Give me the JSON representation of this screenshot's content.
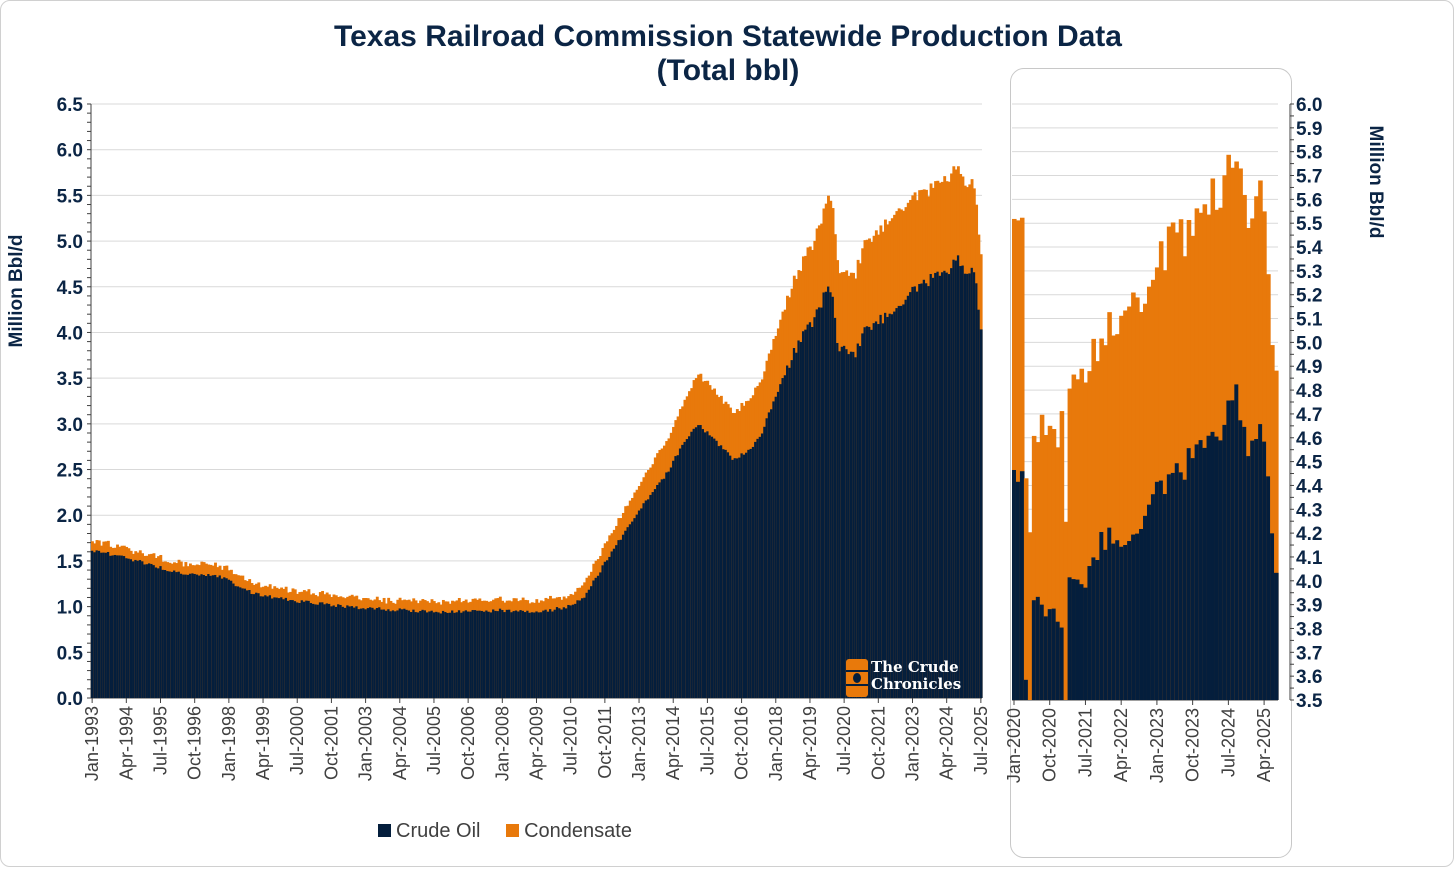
{
  "title": "Texas Railroad Commission Statewide Production Data",
  "subtitle": "(Total bbl)",
  "watermark": {
    "line1": "The Crude",
    "line2": "Chronicles"
  },
  "colors": {
    "crude": "#041e3c",
    "condensate": "#e8790b",
    "grid": "#d9d9d9",
    "text": "#0b2545"
  },
  "legend": [
    {
      "label": "Crude Oil",
      "color": "#041e3c"
    },
    {
      "label": "Condensate",
      "color": "#e8790b"
    }
  ],
  "chart_data": [
    {
      "type": "area",
      "stacked": true,
      "title": "Texas Railroad Commission Statewide Production Data (Total bbl)",
      "ylabel": "Million Bbl/d",
      "ylim": [
        0,
        6.5
      ],
      "yticks": [
        "0.0",
        "0.5",
        "1.0",
        "1.5",
        "2.0",
        "2.5",
        "3.0",
        "3.5",
        "4.0",
        "4.5",
        "5.0",
        "5.5",
        "6.0",
        "6.5"
      ],
      "x_start": "1993-01",
      "x_end": "2025-07",
      "x_tick_labels": [
        "Jan-1993",
        "Apr-1994",
        "Jul-1995",
        "Oct-1996",
        "Jan-1998",
        "Apr-1999",
        "Jul-2000",
        "Oct-2001",
        "Jan-2003",
        "Apr-2004",
        "Jul-2005",
        "Oct-2006",
        "Jan-2008",
        "Apr-2009",
        "Jul-2010",
        "Oct-2011",
        "Jan-2013",
        "Apr-2014",
        "Jul-2015",
        "Oct-2016",
        "Jan-2018",
        "Apr-2019",
        "Jul-2020",
        "Oct-2021",
        "Jan-2023",
        "Apr-2024",
        "Jul-2025"
      ],
      "series": [
        {
          "name": "Crude Oil",
          "anchors": [
            [
              "1993-01",
              1.62
            ],
            [
              "1994-06",
              1.52
            ],
            [
              "1996-01",
              1.38
            ],
            [
              "1997-10",
              1.32
            ],
            [
              "1998-12",
              1.14
            ],
            [
              "2000-06",
              1.06
            ],
            [
              "2003-01",
              0.98
            ],
            [
              "2006-01",
              0.94
            ],
            [
              "2008-01",
              0.96
            ],
            [
              "2009-06",
              0.94
            ],
            [
              "2010-06",
              1.0
            ],
            [
              "2011-01",
              1.1
            ],
            [
              "2012-01",
              1.6
            ],
            [
              "2013-01",
              2.05
            ],
            [
              "2014-01",
              2.45
            ],
            [
              "2014-10",
              2.85
            ],
            [
              "2015-03",
              3.0
            ],
            [
              "2015-09",
              2.85
            ],
            [
              "2016-06",
              2.62
            ],
            [
              "2016-12",
              2.68
            ],
            [
              "2017-06",
              2.85
            ],
            [
              "2018-01",
              3.3
            ],
            [
              "2018-12",
              3.95
            ],
            [
              "2019-06",
              4.15
            ],
            [
              "2019-12",
              4.5
            ],
            [
              "2020-02",
              4.45
            ],
            [
              "2020-04",
              3.85
            ],
            [
              "2020-12",
              3.75
            ],
            [
              "2021-04",
              4.05
            ],
            [
              "2021-12",
              4.15
            ],
            [
              "2022-06",
              4.3
            ],
            [
              "2023-01",
              4.45
            ],
            [
              "2023-10",
              4.6
            ],
            [
              "2024-06",
              4.7
            ],
            [
              "2024-09",
              4.82
            ],
            [
              "2025-01",
              4.62
            ],
            [
              "2025-03",
              4.65
            ],
            [
              "2025-05",
              4.55
            ],
            [
              "2025-07",
              4.05
            ]
          ]
        },
        {
          "name": "Condensate",
          "anchors": [
            [
              "1993-01",
              0.1
            ],
            [
              "1998-01",
              0.12
            ],
            [
              "2003-01",
              0.1
            ],
            [
              "2008-01",
              0.12
            ],
            [
              "2010-06",
              0.12
            ],
            [
              "2011-06",
              0.18
            ],
            [
              "2013-01",
              0.28
            ],
            [
              "2014-06",
              0.4
            ],
            [
              "2015-03",
              0.55
            ],
            [
              "2016-06",
              0.5
            ],
            [
              "2017-06",
              0.6
            ],
            [
              "2018-06",
              0.75
            ],
            [
              "2019-06",
              0.85
            ],
            [
              "2020-01",
              1.0
            ],
            [
              "2020-06",
              0.82
            ],
            [
              "2021-06",
              0.95
            ],
            [
              "2022-06",
              1.05
            ],
            [
              "2023-06",
              1.0
            ],
            [
              "2024-06",
              1.02
            ],
            [
              "2025-03",
              0.95
            ],
            [
              "2025-07",
              0.8
            ]
          ]
        }
      ],
      "total_peak": {
        "date": "2024-10",
        "value": 5.8
      }
    },
    {
      "type": "area",
      "stacked": true,
      "inset": true,
      "ylabel": "Million Bbl/d",
      "ylim": [
        3.5,
        6.0
      ],
      "yticks": [
        "3.5",
        "3.6",
        "3.7",
        "3.8",
        "3.9",
        "4.0",
        "4.1",
        "4.2",
        "4.3",
        "4.4",
        "4.5",
        "4.6",
        "4.7",
        "4.8",
        "4.9",
        "5.0",
        "5.1",
        "5.2",
        "5.3",
        "5.4",
        "5.5",
        "5.6",
        "5.7",
        "5.8",
        "5.9",
        "6.0"
      ],
      "x_start": "2020-01",
      "x_end": "2025-07",
      "x_tick_labels": [
        "Jan-2020",
        "Oct-2020",
        "Jul-2021",
        "Apr-2022",
        "Jan-2023",
        "Oct-2023",
        "Jul-2024",
        "Apr-2025"
      ],
      "series": [
        {
          "name": "Crude Oil",
          "anchors": [
            [
              "2020-01",
              4.5
            ],
            [
              "2020-03",
              4.45
            ],
            [
              "2020-04",
              3.55
            ],
            [
              "2020-05",
              3.5
            ],
            [
              "2020-06",
              3.9
            ],
            [
              "2020-12",
              3.85
            ],
            [
              "2021-01",
              3.75
            ],
            [
              "2021-02",
              3.5
            ],
            [
              "2021-03",
              4.0
            ],
            [
              "2021-06",
              4.0
            ],
            [
              "2021-12",
              4.18
            ],
            [
              "2022-06",
              4.2
            ],
            [
              "2022-12",
              4.35
            ],
            [
              "2023-06",
              4.45
            ],
            [
              "2023-12",
              4.55
            ],
            [
              "2024-02",
              4.6
            ],
            [
              "2024-06",
              4.65
            ],
            [
              "2024-09",
              4.8
            ],
            [
              "2024-12",
              4.55
            ],
            [
              "2025-03",
              4.6
            ],
            [
              "2025-05",
              4.45
            ],
            [
              "2025-07",
              4.05
            ]
          ]
        },
        {
          "name": "Condensate",
          "anchors": [
            [
              "2020-01",
              1.05
            ],
            [
              "2020-03",
              1.1
            ],
            [
              "2020-04",
              0.8
            ],
            [
              "2020-06",
              0.7
            ],
            [
              "2020-12",
              0.8
            ],
            [
              "2021-01",
              0.85
            ],
            [
              "2021-03",
              0.75
            ],
            [
              "2021-06",
              0.85
            ],
            [
              "2021-12",
              0.85
            ],
            [
              "2022-06",
              0.95
            ],
            [
              "2022-12",
              0.95
            ],
            [
              "2023-06",
              1.0
            ],
            [
              "2023-12",
              1.0
            ],
            [
              "2024-06",
              1.0
            ],
            [
              "2024-10",
              1.0
            ],
            [
              "2025-01",
              0.98
            ],
            [
              "2025-04",
              0.95
            ],
            [
              "2025-07",
              0.78
            ]
          ]
        }
      ]
    }
  ]
}
